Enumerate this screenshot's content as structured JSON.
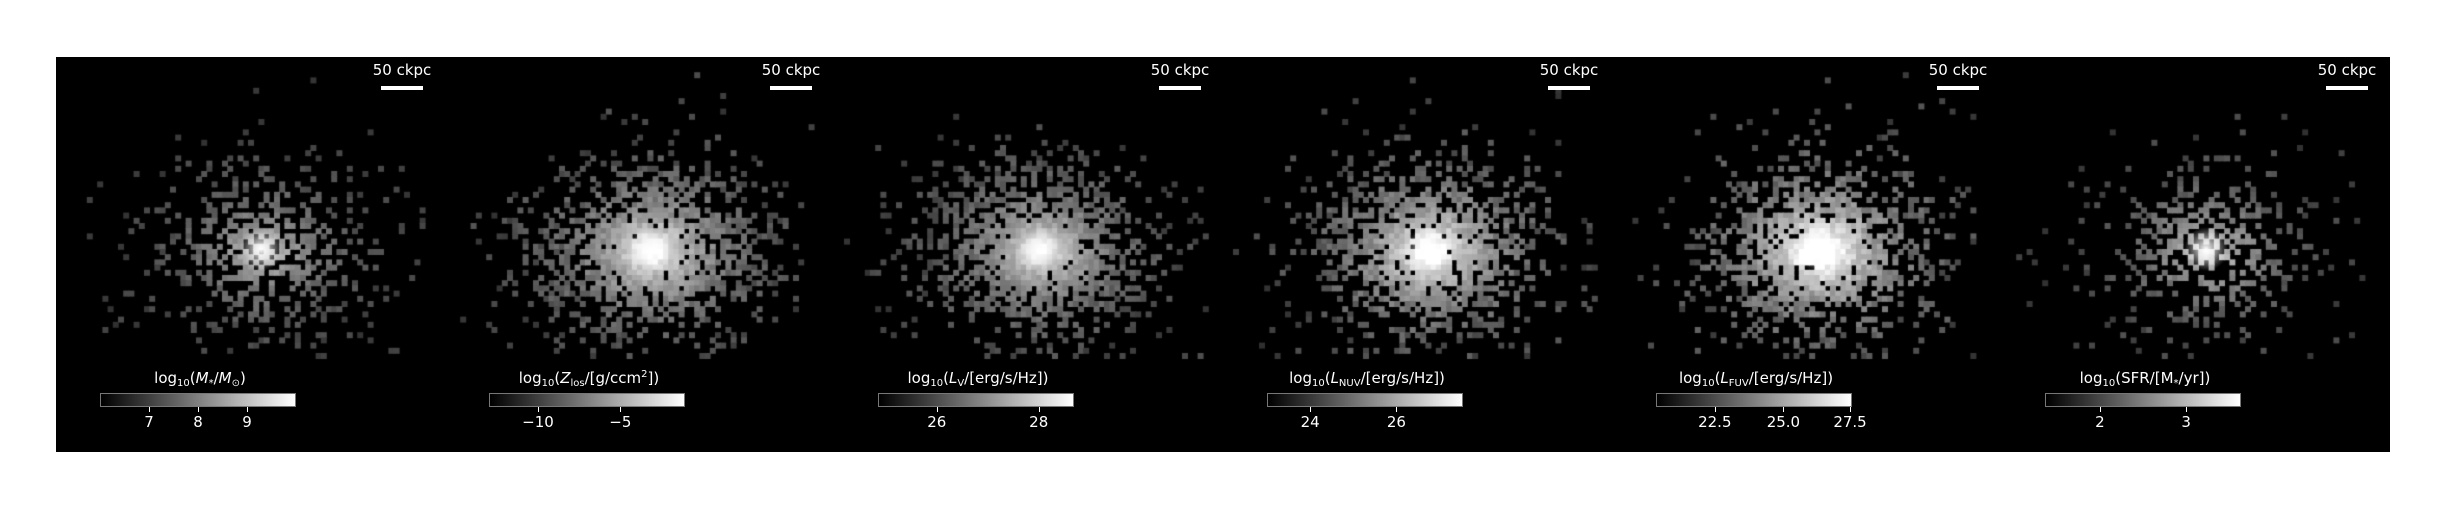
{
  "scale_bar_label": "50 ckpc",
  "panels": [
    {
      "id": "stellar-mass",
      "colorbar_title": "log10(M*/M⊙)",
      "ticks": [
        {
          "label": "7",
          "frac": 0.25
        },
        {
          "label": "8",
          "frac": 0.5
        },
        {
          "label": "9",
          "frac": 0.75
        }
      ],
      "density": 0.55,
      "brightness": 0.35
    },
    {
      "id": "metallicity",
      "colorbar_title": "log10(Zlos/[g/ccm2])",
      "ticks": [
        {
          "label": "−10",
          "frac": 0.25
        },
        {
          "label": "−5",
          "frac": 0.67
        }
      ],
      "density": 1.0,
      "brightness": 0.65
    },
    {
      "id": "luminosity-v",
      "colorbar_title": "log10(LV/[erg/s/Hz])",
      "ticks": [
        {
          "label": "26",
          "frac": 0.3
        },
        {
          "label": "28",
          "frac": 0.82
        }
      ],
      "density": 1.0,
      "brightness": 0.55
    },
    {
      "id": "luminosity-nuv",
      "colorbar_title": "log10(LNUV/[erg/s/Hz])",
      "ticks": [
        {
          "label": "24",
          "frac": 0.22
        },
        {
          "label": "26",
          "frac": 0.66
        }
      ],
      "density": 1.0,
      "brightness": 0.75
    },
    {
      "id": "luminosity-fuv",
      "colorbar_title": "log10(LFUV/[erg/s/Hz])",
      "ticks": [
        {
          "label": "22.5",
          "frac": 0.3
        },
        {
          "label": "25.0",
          "frac": 0.65
        },
        {
          "label": "27.5",
          "frac": 0.99
        }
      ],
      "density": 1.0,
      "brightness": 0.88
    },
    {
      "id": "sfr",
      "colorbar_title": "log10(SFR/[M*/yr])",
      "ticks": [
        {
          "label": "2",
          "frac": 0.28
        },
        {
          "label": "3",
          "frac": 0.72
        }
      ],
      "density": 0.45,
      "brightness": 0.4
    }
  ]
}
